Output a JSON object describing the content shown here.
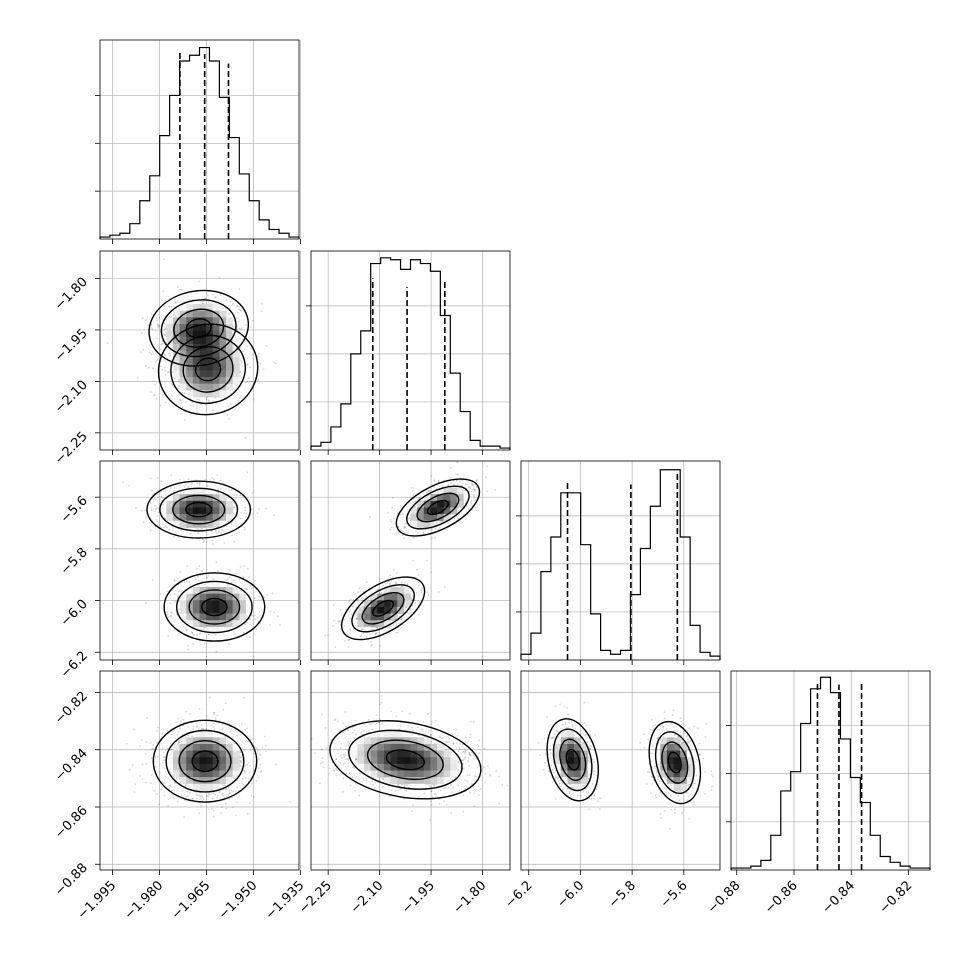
{
  "chart_data": {
    "type": "corner",
    "parameters": [
      {
        "ticks": [
          -1.995,
          -1.98,
          -1.965,
          -1.95,
          -1.935
        ],
        "tick_labels": [
          "−1.995",
          "−1.980",
          "−1.965",
          "−1.950",
          "−1.935"
        ],
        "range": [
          -1.999,
          -1.9355
        ],
        "quantiles": [
          -1.9735,
          -1.9656,
          -1.958
        ],
        "hist_peak": 0.998
      },
      {
        "ticks": [
          -2.25,
          -2.1,
          -1.95,
          -1.8
        ],
        "tick_labels": [
          "−2.25",
          "−2.10",
          "−1.95",
          "−1.80"
        ],
        "range": [
          -2.3,
          -1.72
        ],
        "quantiles": [
          -2.12,
          -2.02,
          -1.91
        ],
        "hist_peak": 0.994
      },
      {
        "ticks": [
          -6.2,
          -6.0,
          -5.8,
          -5.6
        ],
        "tick_labels": [
          "−6.2",
          "−6.0",
          "−5.8",
          "−5.6"
        ],
        "range": [
          -6.23,
          -5.46
        ],
        "quantiles": [
          -6.05,
          -5.805,
          -5.625
        ],
        "hist_peak": 0.994
      },
      {
        "ticks": [
          -0.88,
          -0.86,
          -0.84,
          -0.82
        ],
        "tick_labels": [
          "−0.88",
          "−0.86",
          "−0.84",
          "−0.82"
        ],
        "range": [
          -0.882,
          -0.8125
        ],
        "quantiles": [
          -0.8518,
          -0.8443,
          -0.8364
        ],
        "hist_peak": 0.991
      }
    ],
    "histograms": [
      [
        0.01,
        0.02,
        0.03,
        0.08,
        0.2,
        0.33,
        0.54,
        0.75,
        0.93,
        0.96,
        1.0,
        0.93,
        0.74,
        0.53,
        0.34,
        0.2,
        0.1,
        0.05,
        0.03,
        0.01
      ],
      [
        0.02,
        0.04,
        0.12,
        0.24,
        0.5,
        0.62,
        0.97,
        1.0,
        0.99,
        0.94,
        0.99,
        0.97,
        0.93,
        0.7,
        0.4,
        0.2,
        0.05,
        0.02,
        0.02,
        0.01
      ],
      [
        0.03,
        0.14,
        0.46,
        0.64,
        0.87,
        0.87,
        0.6,
        0.24,
        0.05,
        0.03,
        0.05,
        0.34,
        0.58,
        0.8,
        0.99,
        0.99,
        0.64,
        0.18,
        0.04,
        0.02
      ],
      [
        0.01,
        0.01,
        0.02,
        0.05,
        0.18,
        0.41,
        0.51,
        0.76,
        0.94,
        1.0,
        0.92,
        0.68,
        0.48,
        0.35,
        0.18,
        0.07,
        0.04,
        0.02,
        0.01,
        0.01
      ]
    ],
    "hist_line_caps": [
      [
        1.962,
        1.931,
        1.832
      ],
      [
        1.786,
        1.695,
        1.765
      ],
      [
        1.872,
        1.826,
        1.945
      ],
      [
        1.962,
        1.923,
        1.939
      ]
    ],
    "contour_levels": [
      0.5,
      1.0,
      1.5,
      2.0
    ],
    "joint_components": [
      {
        "i": 1,
        "j": 0,
        "modes": [
          {
            "mu": [
              -1.9675,
              -1.945
            ],
            "sx": 0.0072,
            "sy": 0.05,
            "rho": 0.1,
            "w": 0.5,
            "points": 550
          },
          {
            "mu": [
              -1.9645,
              -2.065
            ],
            "sx": 0.0072,
            "sy": 0.06,
            "rho": 0.05,
            "w": 0.5,
            "points": 550
          }
        ]
      },
      {
        "i": 2,
        "j": 0,
        "modes": [
          {
            "mu": [
              -1.9675,
              -5.648
            ],
            "sx": 0.0075,
            "sy": 0.05,
            "rho": 0.0,
            "w": 0.5,
            "points": 550
          },
          {
            "mu": [
              -1.9625,
              -6.025
            ],
            "sx": 0.0073,
            "sy": 0.06,
            "rho": 0.0,
            "w": 0.5,
            "points": 550
          }
        ]
      },
      {
        "i": 3,
        "j": 0,
        "modes": [
          {
            "mu": [
              -1.9655,
              -0.844
            ],
            "sx": 0.0075,
            "sy": 0.0065,
            "rho": 0.0,
            "w": 1.0,
            "points": 1100
          }
        ]
      },
      {
        "i": 2,
        "j": 1,
        "modes": [
          {
            "mu": [
              -1.93,
              -5.64
            ],
            "sx": 0.055,
            "sy": 0.05,
            "rho": 0.55,
            "w": 0.5,
            "points": 550
          },
          {
            "mu": [
              -2.09,
              -6.03
            ],
            "sx": 0.055,
            "sy": 0.055,
            "rho": 0.55,
            "w": 0.5,
            "points": 550
          }
        ]
      },
      {
        "i": 3,
        "j": 1,
        "modes": [
          {
            "mu": [
              -2.025,
              -0.8435
            ],
            "sx": 0.1,
            "sy": 0.0062,
            "rho": -0.25,
            "w": 1.0,
            "points": 1100
          }
        ]
      },
      {
        "i": 3,
        "j": 2,
        "modes": [
          {
            "mu": [
              -6.03,
              -0.8435
            ],
            "sx": 0.045,
            "sy": 0.0065,
            "rho": -0.25,
            "w": 0.5,
            "points": 550
          },
          {
            "mu": [
              -5.635,
              -0.8445
            ],
            "sx": 0.045,
            "sy": 0.0065,
            "rho": -0.25,
            "w": 0.5,
            "points": 550
          }
        ]
      }
    ],
    "colors": {
      "ink": "#000000",
      "grid": "#b0b0b0",
      "points": "#000000",
      "density_dark": "#000000"
    },
    "grid": true
  }
}
